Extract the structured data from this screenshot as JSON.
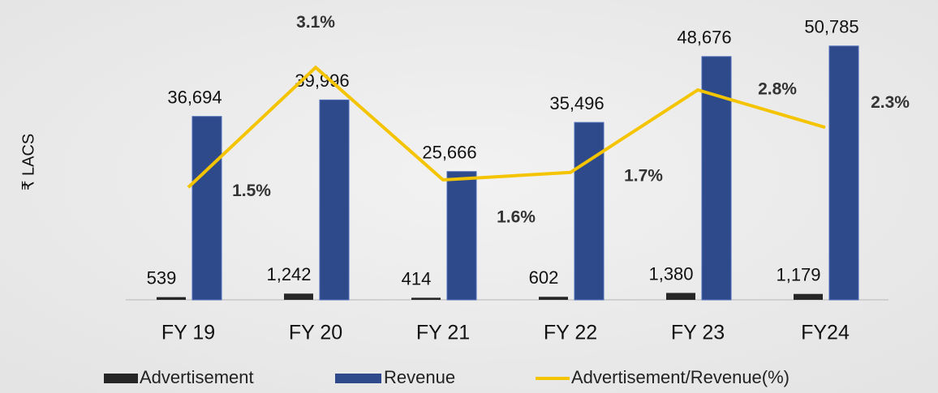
{
  "chart_data": {
    "type": "bar",
    "y_axis_label": "₹ LACS",
    "categories": [
      "FY 19",
      "FY 20",
      "FY 21",
      "FY 22",
      "FY 23",
      "FY24"
    ],
    "ylim": [
      0,
      60000
    ],
    "y2lim": [
      0,
      4
    ],
    "series": [
      {
        "name": "Advertisement",
        "type": "bar",
        "color": "#262626",
        "values": [
          539,
          1242,
          414,
          602,
          1380,
          1179
        ],
        "value_labels": [
          "539",
          "1,242",
          "414",
          "602",
          "1,380",
          "1,179"
        ]
      },
      {
        "name": "Revenue",
        "type": "bar",
        "color": "#2e4a8b",
        "values": [
          36694,
          39996,
          25666,
          35496,
          48676,
          50785
        ],
        "value_labels": [
          "36,694",
          "39,996",
          "25,666",
          "35,496",
          "48,676",
          "50,785"
        ]
      },
      {
        "name": "Advertisement/Revenue(%)",
        "type": "line",
        "axis": "y2",
        "color": "#f5c400",
        "values": [
          1.5,
          3.1,
          1.6,
          1.7,
          2.8,
          2.3
        ],
        "value_labels": [
          "1.5%",
          "3.1%",
          "1.6%",
          "1.7%",
          "2.8%",
          "2.3%"
        ]
      }
    ]
  }
}
